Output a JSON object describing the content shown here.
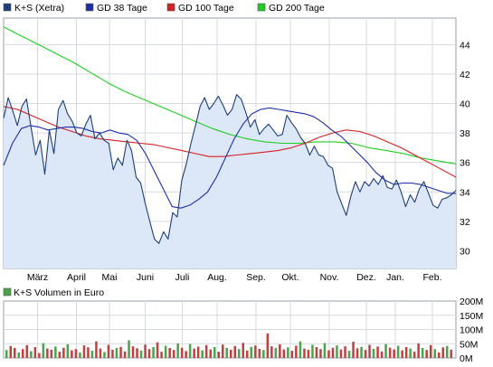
{
  "chart_data": [
    {
      "type": "line",
      "legend_placement": "top",
      "grid": true,
      "x_ticks": [
        "März",
        "April",
        "Mai",
        "Juni",
        "Juli",
        "Aug.",
        "Sep.",
        "Okt.",
        "Nov.",
        "Dez.",
        "Jan.",
        "Feb."
      ],
      "y_ticks": [
        30,
        32,
        34,
        36,
        38,
        40,
        42,
        44
      ],
      "ylim": [
        28.8,
        45.8
      ],
      "series": [
        {
          "name": "K+S (Xetra)",
          "color": "#1f3f7a",
          "fill_color": "#dce7f8",
          "values": [
            39.0,
            40.4,
            39.5,
            38.5,
            39.8,
            40.3,
            38.4,
            36.5,
            37.5,
            35.2,
            38.2,
            36.6,
            39.6,
            40.2,
            39.3,
            38.8,
            38.0,
            37.8,
            38.6,
            39.2,
            37.6,
            38.0,
            37.5,
            37.3,
            35.5,
            36.3,
            35.8,
            37.5,
            36.8,
            35.0,
            34.6,
            33.2,
            32.0,
            30.8,
            30.5,
            31.3,
            30.8,
            32.6,
            32.3,
            34.8,
            35.9,
            37.3,
            38.5,
            39.8,
            40.4,
            39.6,
            40.0,
            40.5,
            39.9,
            39.2,
            39.6,
            40.6,
            40.3,
            39.4,
            38.4,
            38.9,
            37.9,
            38.3,
            38.6,
            38.2,
            37.8,
            37.9,
            39.2,
            38.7,
            38.3,
            37.7,
            37.3,
            36.5,
            37.1,
            36.5,
            36.4,
            35.8,
            35.6,
            34.0,
            33.2,
            32.4,
            33.7,
            34.7,
            34.0,
            34.7,
            34.4,
            34.9,
            34.5,
            35.1,
            34.3,
            34.2,
            34.8,
            34.0,
            33.0,
            33.8,
            33.3,
            34.2,
            34.7,
            33.9,
            33.1,
            32.9,
            33.5,
            33.6,
            33.8,
            34.1
          ]
        },
        {
          "name": "GD 38 Tage",
          "color": "#1c2fa8",
          "values": [
            35.8,
            37.3,
            38.3,
            38.5,
            38.4,
            38.2,
            38.3,
            38.4,
            38.4,
            38.3,
            38.1,
            38.0,
            38.2,
            38.0,
            37.9,
            37.5,
            36.6,
            35.4,
            34.2,
            33.0,
            32.9,
            33.1,
            33.5,
            34.0,
            35.0,
            36.3,
            37.6,
            38.6,
            39.3,
            39.6,
            39.7,
            39.6,
            39.5,
            39.4,
            39.3,
            39.1,
            38.7,
            38.2,
            37.8,
            37.2,
            36.6,
            36.0,
            35.3,
            34.8,
            34.5,
            34.6,
            34.6,
            34.5,
            34.3,
            34.1,
            33.9,
            33.9
          ]
        },
        {
          "name": "GD 100 Tage",
          "color": "#d42020",
          "values": [
            39.8,
            39.6,
            39.2,
            38.8,
            38.4,
            38.1,
            37.8,
            37.6,
            37.5,
            37.4,
            37.3,
            37.2,
            37.0,
            36.8,
            36.6,
            36.4,
            36.4,
            36.5,
            36.6,
            36.7,
            36.8,
            37.0,
            37.3,
            37.7,
            38.0,
            38.2,
            38.1,
            37.8,
            37.4,
            37.0,
            36.5,
            36.0,
            35.5,
            35.0
          ]
        },
        {
          "name": "GD 200 Tage",
          "color": "#22cc22",
          "values": [
            45.2,
            44.6,
            44.0,
            43.4,
            42.8,
            42.1,
            41.4,
            40.8,
            40.3,
            39.8,
            39.3,
            38.8,
            38.3,
            37.9,
            37.6,
            37.4,
            37.3,
            37.3,
            37.4,
            37.4,
            37.3,
            37.0,
            36.8,
            36.6,
            36.3,
            36.1,
            35.9
          ]
        }
      ]
    },
    {
      "type": "bar",
      "series_name": "K+S Volumen in Euro",
      "bar_color": "#c04040",
      "bar_color_alt": "#4aa44a",
      "y_ticks": [
        "0M",
        "50M",
        "100M",
        "150M",
        "200M"
      ],
      "ylim": [
        0,
        200
      ],
      "values": [
        28,
        42,
        35,
        19,
        31,
        45,
        24,
        38,
        17,
        52,
        33,
        29,
        40,
        22,
        36,
        48,
        27,
        31,
        19,
        44,
        37,
        25,
        58,
        33,
        21,
        46,
        29,
        35,
        39,
        23,
        62,
        41,
        34,
        26,
        47,
        31,
        38,
        55,
        22,
        43,
        35,
        28,
        51,
        36,
        24,
        49,
        33,
        40,
        27,
        45,
        30,
        38,
        22,
        47,
        35,
        29,
        42,
        31,
        53,
        26,
        39,
        44,
        32,
        28,
        86,
        41,
        35,
        48,
        30,
        37,
        25,
        43,
        58,
        33,
        29,
        46,
        38,
        31,
        52,
        27,
        36,
        44,
        30,
        41,
        25,
        57,
        34,
        39,
        28,
        46,
        32,
        40,
        23,
        49,
        36,
        30,
        43,
        27,
        38,
        33,
        22,
        51,
        35,
        28,
        45,
        31,
        19,
        37,
        42,
        29
      ]
    }
  ]
}
